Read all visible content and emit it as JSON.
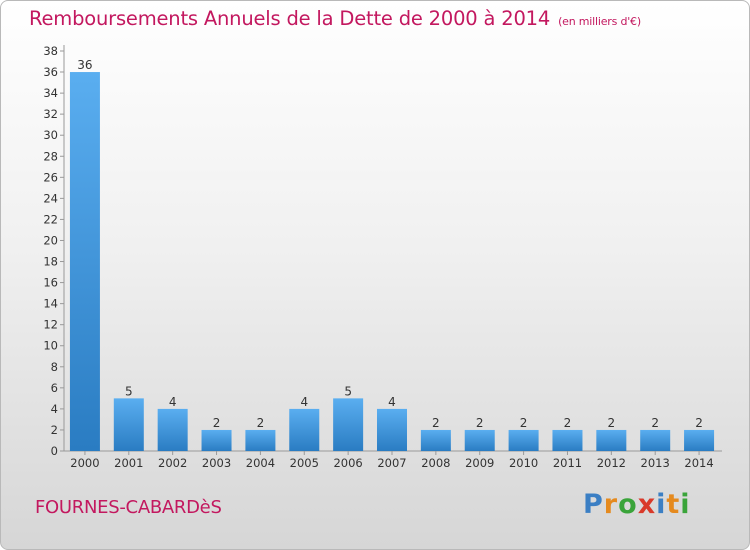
{
  "header": {
    "title": "Remboursements Annuels de la Dette de 2000 à 2014",
    "unit": "(en milliers d'€)"
  },
  "footer": {
    "commune": "FOURNES-CABARDèS",
    "logo_letters": [
      {
        "char": "P",
        "color": "#3b7fc4"
      },
      {
        "char": "r",
        "color": "#e58a1e"
      },
      {
        "char": "o",
        "color": "#3aa43a"
      },
      {
        "char": "x",
        "color": "#d93a2a"
      },
      {
        "char": "i",
        "color": "#3b7fc4"
      },
      {
        "char": "t",
        "color": "#e58a1e"
      },
      {
        "char": "i",
        "color": "#3aa43a"
      }
    ]
  },
  "colors": {
    "accent": "#c3185f",
    "bar_light": "#5aaef0",
    "bar_dark": "#2a7cc2"
  },
  "chart_data": {
    "type": "bar",
    "title": "Remboursements Annuels de la Dette de 2000 à 2014",
    "subtitle": "(en milliers d'€)",
    "categories": [
      "2000",
      "2001",
      "2002",
      "2003",
      "2004",
      "2005",
      "2006",
      "2007",
      "2008",
      "2009",
      "2010",
      "2011",
      "2012",
      "2013",
      "2014"
    ],
    "values": [
      36,
      5,
      4,
      2,
      2,
      4,
      5,
      4,
      2,
      2,
      2,
      2,
      2,
      2,
      2
    ],
    "ylim": [
      0,
      38
    ],
    "yticks": [
      0,
      2,
      4,
      6,
      8,
      10,
      12,
      14,
      16,
      18,
      20,
      22,
      24,
      26,
      28,
      30,
      32,
      34,
      36,
      38
    ],
    "grid": false,
    "data_labels": true
  }
}
